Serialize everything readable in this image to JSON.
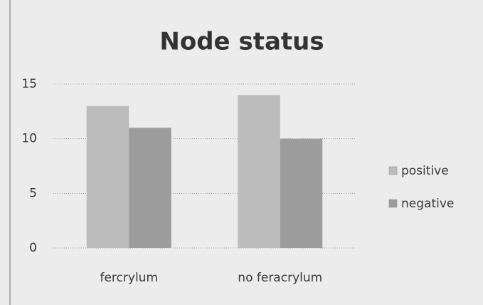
{
  "chart_data": {
    "type": "bar",
    "title": "Node status",
    "categories": [
      "fercrylum",
      "no feracrylum"
    ],
    "series": [
      {
        "name": "positive",
        "color": "#bcbcbc",
        "values": [
          13,
          14
        ]
      },
      {
        "name": "negative",
        "color": "#9c9c9c",
        "values": [
          11,
          10
        ]
      }
    ],
    "ylim": [
      0,
      15
    ],
    "yticks": [
      0,
      5,
      10,
      15
    ],
    "grid": true,
    "legend": "right"
  }
}
